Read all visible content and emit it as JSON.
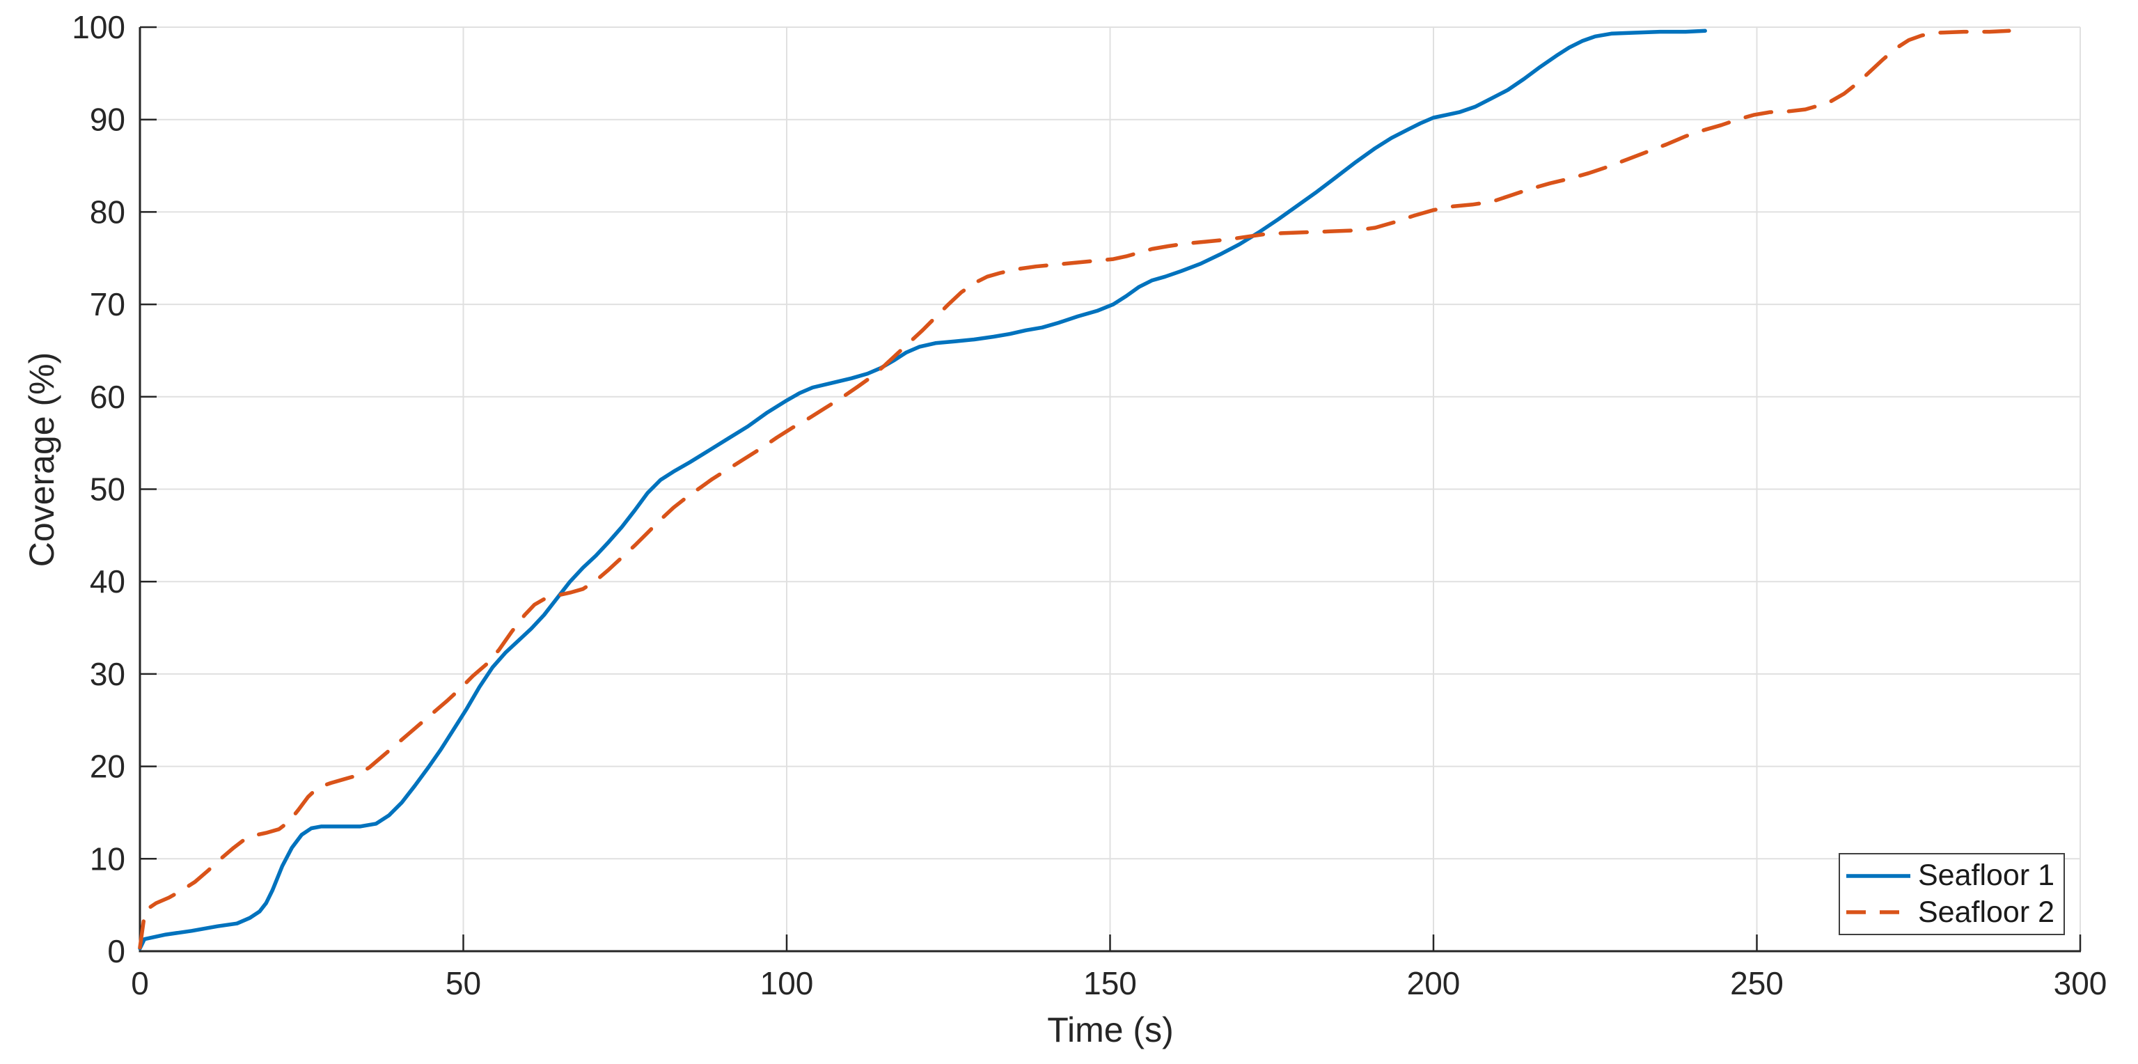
{
  "figure": {
    "xlabel": "Time (s)",
    "ylabel": "Coverage (%)",
    "colors": {
      "series1": "#0072BD",
      "series2": "#D95319",
      "grid": "#e0e0e0",
      "axis": "#262626",
      "tick_label": "#262626",
      "legend_border": "#3f3f3f",
      "background": "#ffffff"
    },
    "legend": {
      "position": "southeast",
      "items": [
        {
          "label": "Seafloor 1",
          "style": "solid"
        },
        {
          "label": "Seafloor 2",
          "style": "dashed"
        }
      ]
    }
  },
  "chart_data": {
    "type": "line",
    "title": "",
    "xlabel": "Time (s)",
    "ylabel": "Coverage (%)",
    "xlim": [
      0,
      300
    ],
    "ylim": [
      0,
      100
    ],
    "xticks": [
      0,
      50,
      100,
      150,
      200,
      250,
      300
    ],
    "yticks": [
      0,
      10,
      20,
      30,
      40,
      50,
      60,
      70,
      80,
      90,
      100
    ],
    "grid": true,
    "legend_position": "southeast",
    "series": [
      {
        "name": "Seafloor 1",
        "color": "#0072BD",
        "line_style": "solid",
        "points": [
          [
            0,
            0.3
          ],
          [
            0.7,
            1.3
          ],
          [
            4,
            1.8
          ],
          [
            8,
            2.2
          ],
          [
            12,
            2.7
          ],
          [
            15,
            3.0
          ],
          [
            17,
            3.6
          ],
          [
            18.5,
            4.3
          ],
          [
            19.5,
            5.2
          ],
          [
            20.5,
            6.6
          ],
          [
            22,
            9.2
          ],
          [
            23.5,
            11.2
          ],
          [
            25,
            12.6
          ],
          [
            26.5,
            13.3
          ],
          [
            28,
            13.5
          ],
          [
            31,
            13.5
          ],
          [
            34,
            13.5
          ],
          [
            36.5,
            13.8
          ],
          [
            38.5,
            14.7
          ],
          [
            40.5,
            16.1
          ],
          [
            42.5,
            17.9
          ],
          [
            44.5,
            19.8
          ],
          [
            46.5,
            21.8
          ],
          [
            48.5,
            24.0
          ],
          [
            50.5,
            26.2
          ],
          [
            52.5,
            28.6
          ],
          [
            54.5,
            30.7
          ],
          [
            56.5,
            32.3
          ],
          [
            58.5,
            33.6
          ],
          [
            60.5,
            34.9
          ],
          [
            62.5,
            36.4
          ],
          [
            64.5,
            38.2
          ],
          [
            66.5,
            40.0
          ],
          [
            68.5,
            41.5
          ],
          [
            70.5,
            42.8
          ],
          [
            72.5,
            44.3
          ],
          [
            74.5,
            45.9
          ],
          [
            76.5,
            47.7
          ],
          [
            78.5,
            49.6
          ],
          [
            80.5,
            51.0
          ],
          [
            82.5,
            51.9
          ],
          [
            85,
            52.9
          ],
          [
            88,
            54.2
          ],
          [
            91,
            55.5
          ],
          [
            94,
            56.8
          ],
          [
            97,
            58.3
          ],
          [
            100,
            59.6
          ],
          [
            102,
            60.4
          ],
          [
            104,
            61.0
          ],
          [
            107,
            61.5
          ],
          [
            110,
            62.0
          ],
          [
            112.5,
            62.5
          ],
          [
            114.5,
            63.1
          ],
          [
            116.5,
            63.9
          ],
          [
            118.5,
            64.8
          ],
          [
            120.5,
            65.4
          ],
          [
            123,
            65.8
          ],
          [
            126,
            66.0
          ],
          [
            129,
            66.2
          ],
          [
            132,
            66.5
          ],
          [
            134.5,
            66.8
          ],
          [
            137,
            67.2
          ],
          [
            139.5,
            67.5
          ],
          [
            142,
            68.0
          ],
          [
            145,
            68.7
          ],
          [
            148,
            69.3
          ],
          [
            150.5,
            70.0
          ],
          [
            152.5,
            70.9
          ],
          [
            154.5,
            71.9
          ],
          [
            156.5,
            72.6
          ],
          [
            158.5,
            73.0
          ],
          [
            161,
            73.6
          ],
          [
            164,
            74.4
          ],
          [
            167,
            75.4
          ],
          [
            170,
            76.5
          ],
          [
            173,
            77.8
          ],
          [
            176,
            79.2
          ],
          [
            179,
            80.7
          ],
          [
            182,
            82.2
          ],
          [
            185,
            83.8
          ],
          [
            188,
            85.4
          ],
          [
            191,
            86.9
          ],
          [
            193.5,
            88.0
          ],
          [
            196,
            88.9
          ],
          [
            198,
            89.6
          ],
          [
            200,
            90.2
          ],
          [
            202,
            90.5
          ],
          [
            204,
            90.8
          ],
          [
            206.5,
            91.4
          ],
          [
            209,
            92.3
          ],
          [
            211.5,
            93.2
          ],
          [
            214,
            94.4
          ],
          [
            216.5,
            95.7
          ],
          [
            219,
            96.9
          ],
          [
            221,
            97.8
          ],
          [
            223,
            98.5
          ],
          [
            225,
            99.0
          ],
          [
            227.5,
            99.3
          ],
          [
            231,
            99.4
          ],
          [
            235,
            99.5
          ],
          [
            239,
            99.5
          ],
          [
            242,
            99.6
          ]
        ]
      },
      {
        "name": "Seafloor 2",
        "color": "#D95319",
        "line_style": "dashed",
        "points": [
          [
            0,
            0.4
          ],
          [
            0.8,
            4.4
          ],
          [
            2.5,
            5.2
          ],
          [
            4.5,
            5.8
          ],
          [
            6.5,
            6.6
          ],
          [
            8.5,
            7.5
          ],
          [
            10.5,
            8.7
          ],
          [
            12.5,
            10.0
          ],
          [
            14.5,
            11.2
          ],
          [
            16,
            12.0
          ],
          [
            17.5,
            12.5
          ],
          [
            19.5,
            12.8
          ],
          [
            21.5,
            13.2
          ],
          [
            23,
            14.0
          ],
          [
            24.5,
            15.3
          ],
          [
            26,
            16.7
          ],
          [
            27.5,
            17.7
          ],
          [
            29.5,
            18.2
          ],
          [
            31.5,
            18.6
          ],
          [
            33.5,
            19.0
          ],
          [
            35.5,
            19.9
          ],
          [
            37.5,
            21.1
          ],
          [
            39.5,
            22.3
          ],
          [
            41.5,
            23.5
          ],
          [
            43.5,
            24.7
          ],
          [
            45.5,
            25.9
          ],
          [
            47.5,
            27.1
          ],
          [
            49.5,
            28.4
          ],
          [
            51.5,
            29.8
          ],
          [
            53.5,
            31.0
          ],
          [
            55.5,
            32.6
          ],
          [
            57.5,
            34.6
          ],
          [
            59.5,
            36.4
          ],
          [
            61,
            37.5
          ],
          [
            62.5,
            38.1
          ],
          [
            64.5,
            38.5
          ],
          [
            66.5,
            38.8
          ],
          [
            68.5,
            39.2
          ],
          [
            70.5,
            40.1
          ],
          [
            72.5,
            41.3
          ],
          [
            74.5,
            42.6
          ],
          [
            76.5,
            43.9
          ],
          [
            78.5,
            45.3
          ],
          [
            80.5,
            46.7
          ],
          [
            82.5,
            48.0
          ],
          [
            84.5,
            49.1
          ],
          [
            86.5,
            50.1
          ],
          [
            88.5,
            51.1
          ],
          [
            91,
            52.2
          ],
          [
            93.5,
            53.3
          ],
          [
            96,
            54.4
          ],
          [
            98.5,
            55.6
          ],
          [
            101,
            56.7
          ],
          [
            103.5,
            57.7
          ],
          [
            106,
            58.8
          ],
          [
            108.5,
            59.9
          ],
          [
            111,
            61.1
          ],
          [
            113,
            62.1
          ],
          [
            115,
            63.3
          ],
          [
            117,
            64.6
          ],
          [
            119,
            65.9
          ],
          [
            121,
            67.2
          ],
          [
            123,
            68.6
          ],
          [
            125,
            70.0
          ],
          [
            127,
            71.3
          ],
          [
            129,
            72.3
          ],
          [
            131,
            73.0
          ],
          [
            133,
            73.4
          ],
          [
            135.5,
            73.8
          ],
          [
            138.5,
            74.1
          ],
          [
            141.5,
            74.3
          ],
          [
            144.5,
            74.5
          ],
          [
            147.5,
            74.7
          ],
          [
            150.5,
            74.9
          ],
          [
            152.5,
            75.2
          ],
          [
            154.5,
            75.6
          ],
          [
            156.5,
            76.0
          ],
          [
            159,
            76.3
          ],
          [
            162,
            76.6
          ],
          [
            165,
            76.8
          ],
          [
            168,
            77.0
          ],
          [
            171,
            77.3
          ],
          [
            174,
            77.6
          ],
          [
            176.5,
            77.7
          ],
          [
            180,
            77.8
          ],
          [
            184,
            77.9
          ],
          [
            188,
            78.0
          ],
          [
            191,
            78.3
          ],
          [
            194,
            78.9
          ],
          [
            197,
            79.6
          ],
          [
            200,
            80.2
          ],
          [
            203,
            80.6
          ],
          [
            206,
            80.8
          ],
          [
            209,
            81.1
          ],
          [
            212,
            81.8
          ],
          [
            215,
            82.5
          ],
          [
            218,
            83.1
          ],
          [
            221,
            83.6
          ],
          [
            224,
            84.2
          ],
          [
            227,
            84.9
          ],
          [
            230,
            85.7
          ],
          [
            233,
            86.5
          ],
          [
            236,
            87.3
          ],
          [
            239,
            88.2
          ],
          [
            242,
            88.9
          ],
          [
            244.5,
            89.4
          ],
          [
            247,
            90.0
          ],
          [
            249.5,
            90.5
          ],
          [
            252,
            90.8
          ],
          [
            255,
            90.9
          ],
          [
            257.5,
            91.1
          ],
          [
            259.5,
            91.5
          ],
          [
            261.5,
            92.0
          ],
          [
            263.5,
            92.8
          ],
          [
            265.5,
            93.9
          ],
          [
            267.5,
            95.2
          ],
          [
            269.5,
            96.5
          ],
          [
            271.5,
            97.7
          ],
          [
            273.5,
            98.6
          ],
          [
            275.5,
            99.1
          ],
          [
            278,
            99.4
          ],
          [
            282,
            99.5
          ],
          [
            286,
            99.5
          ],
          [
            289,
            99.6
          ]
        ]
      }
    ]
  }
}
